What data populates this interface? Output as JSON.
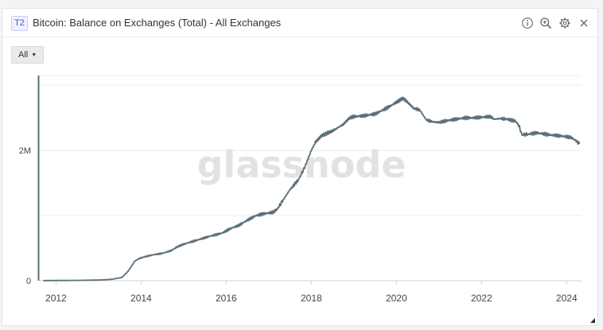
{
  "header": {
    "badge": "T2",
    "title": "Bitcoin: Balance on Exchanges (Total) - All Exchanges",
    "icons": [
      "info-icon",
      "zoom-icon",
      "settings-icon",
      "close-icon"
    ]
  },
  "filter": {
    "label": "All"
  },
  "watermark": "glassnode",
  "colors": {
    "line": "#5b6f7a",
    "grid": "#ececec",
    "text": "#444444",
    "watermark": "#e2e2e2"
  },
  "chart_data": {
    "type": "line",
    "title": "Bitcoin: Balance on Exchanges (Total) - All Exchanges",
    "xlabel": "",
    "ylabel": "",
    "xlim": [
      2011.6,
      2024.35
    ],
    "ylim": [
      0,
      3150000
    ],
    "x_ticks": [
      2012,
      2014,
      2016,
      2018,
      2020,
      2022,
      2024
    ],
    "y_ticks": [
      0,
      2000000
    ],
    "y_tick_labels": [
      "0",
      "2M"
    ],
    "grid": true,
    "series": [
      {
        "x": [
          2011.7,
          2012.5,
          2013.0,
          2013.3,
          2013.55,
          2013.7,
          2013.85,
          2013.95,
          2014.1,
          2014.3,
          2014.5,
          2014.7,
          2014.85,
          2015.0,
          2015.3,
          2015.6,
          2015.9,
          2016.1,
          2016.3,
          2016.5,
          2016.7,
          2016.9,
          2017.1,
          2017.2,
          2017.35,
          2017.5,
          2017.7,
          2017.85,
          2018.0,
          2018.1,
          2018.25,
          2018.5,
          2018.75,
          2018.9,
          2019.0,
          2019.2,
          2019.5,
          2019.8,
          2020.0,
          2020.15,
          2020.25,
          2020.4,
          2020.55,
          2020.7,
          2020.85,
          2021.0,
          2021.2,
          2021.4,
          2021.6,
          2021.8,
          2022.0,
          2022.2,
          2022.3,
          2022.45,
          2022.6,
          2022.8,
          2022.88,
          2022.95,
          2023.1,
          2023.3,
          2023.6,
          2023.9,
          2024.0,
          2024.1,
          2024.2,
          2024.3
        ],
        "y": [
          2000,
          5000,
          10000,
          20000,
          50000,
          150000,
          300000,
          340000,
          370000,
          400000,
          420000,
          460000,
          520000,
          560000,
          620000,
          680000,
          730000,
          800000,
          850000,
          930000,
          1000000,
          1030000,
          1050000,
          1100000,
          1250000,
          1400000,
          1550000,
          1750000,
          2000000,
          2130000,
          2230000,
          2300000,
          2400000,
          2500000,
          2520000,
          2530000,
          2560000,
          2660000,
          2740000,
          2800000,
          2750000,
          2650000,
          2620000,
          2470000,
          2440000,
          2430000,
          2460000,
          2480000,
          2500000,
          2500000,
          2510000,
          2520000,
          2480000,
          2490000,
          2480000,
          2450000,
          2380000,
          2240000,
          2250000,
          2270000,
          2240000,
          2220000,
          2210000,
          2200000,
          2160000,
          2100000
        ]
      }
    ]
  }
}
